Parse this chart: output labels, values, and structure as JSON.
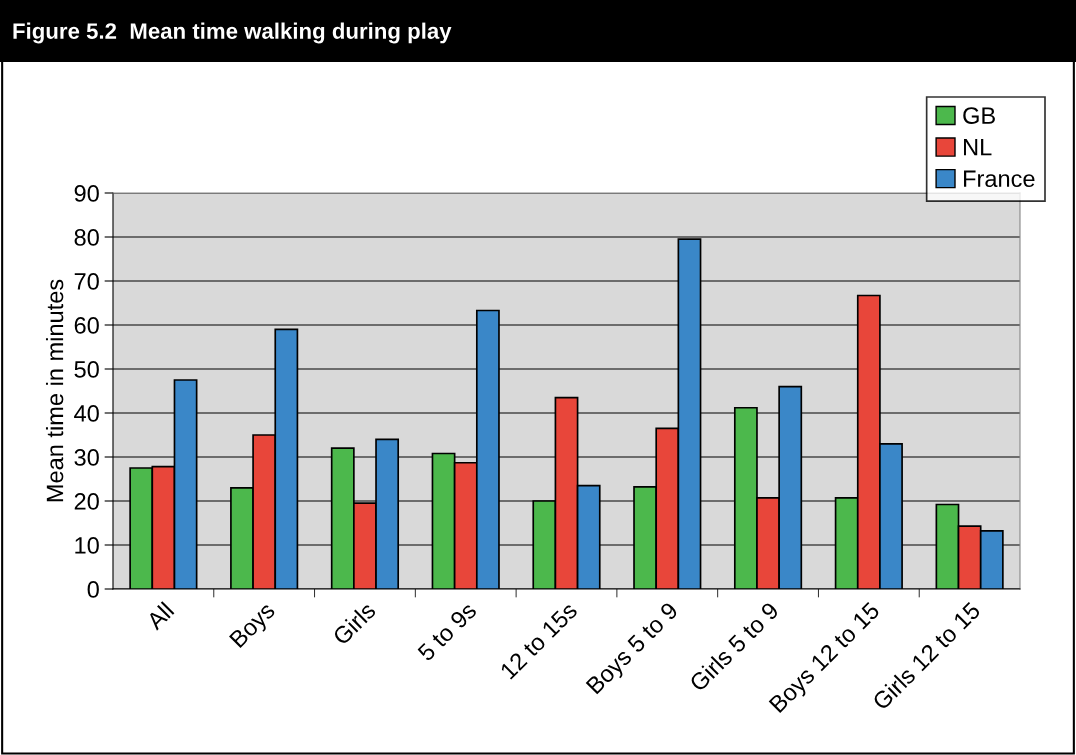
{
  "chart_data": {
    "type": "bar",
    "title": "Figure 5.2  Mean time walking during play",
    "ylabel": "Mean time in minutes",
    "categories": [
      "All",
      "Boys",
      "Girls",
      "5 to 9s",
      "12 to 15s",
      "Boys 5 to 9",
      "Girls 5 to 9",
      "Boys 12 to 15",
      "Girls 12 to 15"
    ],
    "series": [
      {
        "name": "GB",
        "color": "#4cb84c",
        "values": [
          27.5,
          23,
          32,
          30.8,
          20,
          23.2,
          41.2,
          20.7,
          19.2
        ]
      },
      {
        "name": "NL",
        "color": "#e8463a",
        "values": [
          27.8,
          35,
          19.5,
          28.7,
          43.5,
          36.5,
          20.7,
          66.7,
          14.3
        ]
      },
      {
        "name": "France",
        "color": "#3a87c8",
        "values": [
          47.5,
          59,
          34,
          63.3,
          23.5,
          79.5,
          46,
          33,
          13.2
        ]
      }
    ],
    "ylim": [
      0,
      90
    ],
    "yticks": [
      0,
      10,
      20,
      30,
      40,
      50,
      60,
      70,
      80,
      90
    ],
    "grid": "y",
    "legend": "top right"
  }
}
